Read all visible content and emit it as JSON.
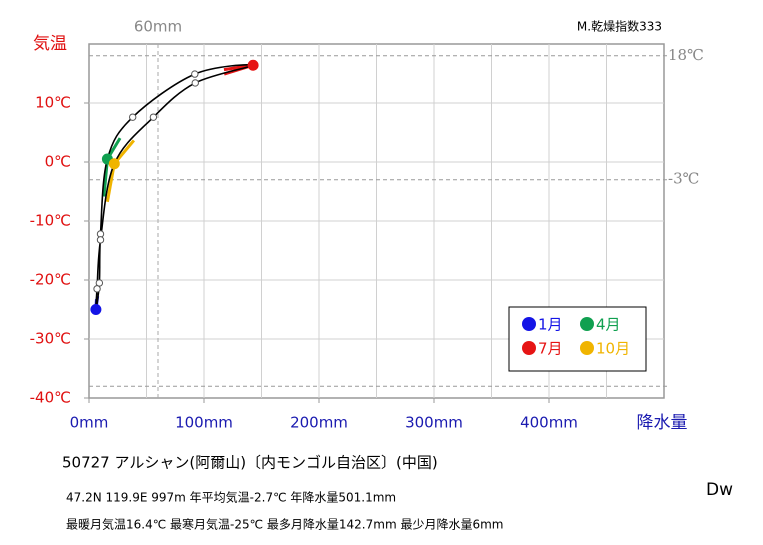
{
  "chart_data": {
    "type": "climograph",
    "y_title": "気温",
    "x_title": "降水量",
    "top_right": "M.乾燥指数333",
    "x": [
      6,
      9,
      10,
      16,
      38,
      92,
      142.7,
      92.4,
      56,
      22,
      10,
      7
    ],
    "values": [
      -25,
      -20.5,
      -12.2,
      0.5,
      7.6,
      14.9,
      16.4,
      13.4,
      7.6,
      -0.3,
      -13.2,
      -21.5
    ],
    "point_colors": [
      "#1414e6",
      "#ffffff",
      "#ffffff",
      "#10a050",
      "#ffffff",
      "#ffffff",
      "#e61414",
      "#ffffff",
      "#ffffff",
      "#f0b400",
      "#ffffff",
      "#ffffff"
    ],
    "legend": [
      {
        "name": "1月",
        "color": "#1414e6"
      },
      {
        "name": "4月",
        "color": "#10a050"
      },
      {
        "name": "7月",
        "color": "#e61414"
      },
      {
        "name": "10月",
        "color": "#f0b400"
      }
    ],
    "xlim": [
      0,
      500
    ],
    "ylim": [
      -40,
      20
    ],
    "xticks": [
      {
        "value": 0,
        "label": "0mm"
      },
      {
        "value": 100,
        "label": "100mm"
      },
      {
        "value": 200,
        "label": "200mm"
      },
      {
        "value": 300,
        "label": "300mm"
      },
      {
        "value": 400,
        "label": "400mm"
      }
    ],
    "xgrid": [
      50,
      100,
      150,
      200,
      250,
      300,
      350,
      400,
      450
    ],
    "yticks": [
      {
        "value": -40,
        "label": "-40℃"
      },
      {
        "value": -30,
        "label": "-30℃"
      },
      {
        "value": -20,
        "label": "-20℃"
      },
      {
        "value": -10,
        "label": "-10℃"
      },
      {
        "value": 0,
        "label": "0℃"
      },
      {
        "value": 10,
        "label": "10℃"
      }
    ],
    "ygrid": [
      -30,
      -20,
      -10,
      0,
      10
    ],
    "vline": {
      "value": 60,
      "label": "60mm"
    },
    "hlines": [
      {
        "value": 18,
        "label": "18℃"
      },
      {
        "value": -3,
        "label": "-3℃"
      },
      {
        "value": -38
      }
    ],
    "station": "50727  アルシャン(阿爾山)〔内モンゴル自治区〕(中国)",
    "info1": "47.2N  119.9E 997m  年平均気温-2.7℃ 年降水量501.1mm",
    "info2": "最暖月気温16.4℃ 最寒月気温-25℃ 最多月降水量142.7mm 最少月降水量6mm",
    "climate": "Dw"
  }
}
